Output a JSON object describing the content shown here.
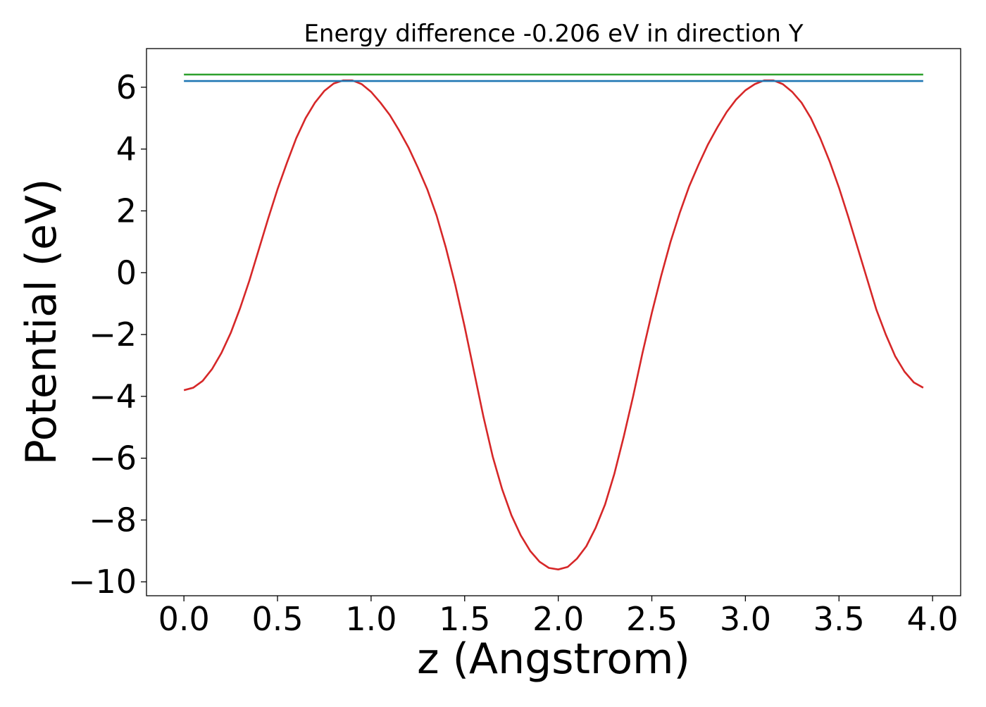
{
  "chart_data": {
    "type": "line",
    "title": "Energy difference -0.206 eV in direction Y",
    "xlabel": "z (Angstrom)",
    "ylabel": "Potential (eV)",
    "xlim": [
      -0.2,
      4.15
    ],
    "ylim": [
      -10.45,
      7.25
    ],
    "xticks": [
      0.0,
      0.5,
      1.0,
      1.5,
      2.0,
      2.5,
      3.0,
      3.5,
      4.0
    ],
    "xtick_labels": [
      "0.0",
      "0.5",
      "1.0",
      "1.5",
      "2.0",
      "2.5",
      "3.0",
      "3.5",
      "4.0"
    ],
    "yticks": [
      -10,
      -8,
      -6,
      -4,
      -2,
      0,
      2,
      4,
      6
    ],
    "ytick_labels": [
      "−10",
      "−8",
      "−6",
      "−4",
      "−2",
      "0",
      "2",
      "4",
      "6"
    ],
    "grid": false,
    "series": [
      {
        "color": "#d62728",
        "x": [
          0.0,
          0.05,
          0.1,
          0.15,
          0.2,
          0.25,
          0.3,
          0.35,
          0.4,
          0.45,
          0.5,
          0.55,
          0.6,
          0.65,
          0.7,
          0.75,
          0.8,
          0.85,
          0.9,
          0.95,
          1.0,
          1.05,
          1.1,
          1.15,
          1.2,
          1.25,
          1.3,
          1.35,
          1.4,
          1.45,
          1.5,
          1.55,
          1.6,
          1.65,
          1.7,
          1.75,
          1.8,
          1.85,
          1.9,
          1.95,
          2.0,
          2.05,
          2.1,
          2.15,
          2.2,
          2.25,
          2.3,
          2.35,
          2.4,
          2.45,
          2.5,
          2.55,
          2.6,
          2.65,
          2.7,
          2.75,
          2.8,
          2.85,
          2.9,
          2.95,
          3.0,
          3.05,
          3.1,
          3.15,
          3.2,
          3.25,
          3.3,
          3.35,
          3.4,
          3.45,
          3.5,
          3.55,
          3.6,
          3.65,
          3.7,
          3.75,
          3.8,
          3.85,
          3.9,
          3.95
        ],
        "y": [
          -3.8,
          -3.72,
          -3.5,
          -3.12,
          -2.6,
          -1.95,
          -1.15,
          -0.25,
          0.75,
          1.75,
          2.7,
          3.55,
          4.35,
          5.0,
          5.5,
          5.88,
          6.12,
          6.22,
          6.22,
          6.1,
          5.85,
          5.5,
          5.1,
          4.6,
          4.05,
          3.4,
          2.7,
          1.85,
          0.8,
          -0.4,
          -1.75,
          -3.2,
          -4.65,
          -5.95,
          -7.0,
          -7.85,
          -8.5,
          -9.0,
          -9.35,
          -9.55,
          -9.6,
          -9.52,
          -9.25,
          -8.85,
          -8.25,
          -7.5,
          -6.5,
          -5.3,
          -4.0,
          -2.6,
          -1.3,
          -0.1,
          1.0,
          1.95,
          2.8,
          3.5,
          4.15,
          4.7,
          5.2,
          5.6,
          5.9,
          6.1,
          6.22,
          6.22,
          6.1,
          5.85,
          5.5,
          5.0,
          4.35,
          3.6,
          2.75,
          1.8,
          0.8,
          -0.2,
          -1.2,
          -2.0,
          -2.7,
          -3.2,
          -3.55,
          -3.72
        ]
      },
      {
        "color": "#1f77b4",
        "x": [
          0.0,
          3.95
        ],
        "y": [
          6.2,
          6.2
        ]
      },
      {
        "color": "#2ca02c",
        "x": [
          0.0,
          3.95
        ],
        "y": [
          6.41,
          6.41
        ]
      }
    ]
  }
}
